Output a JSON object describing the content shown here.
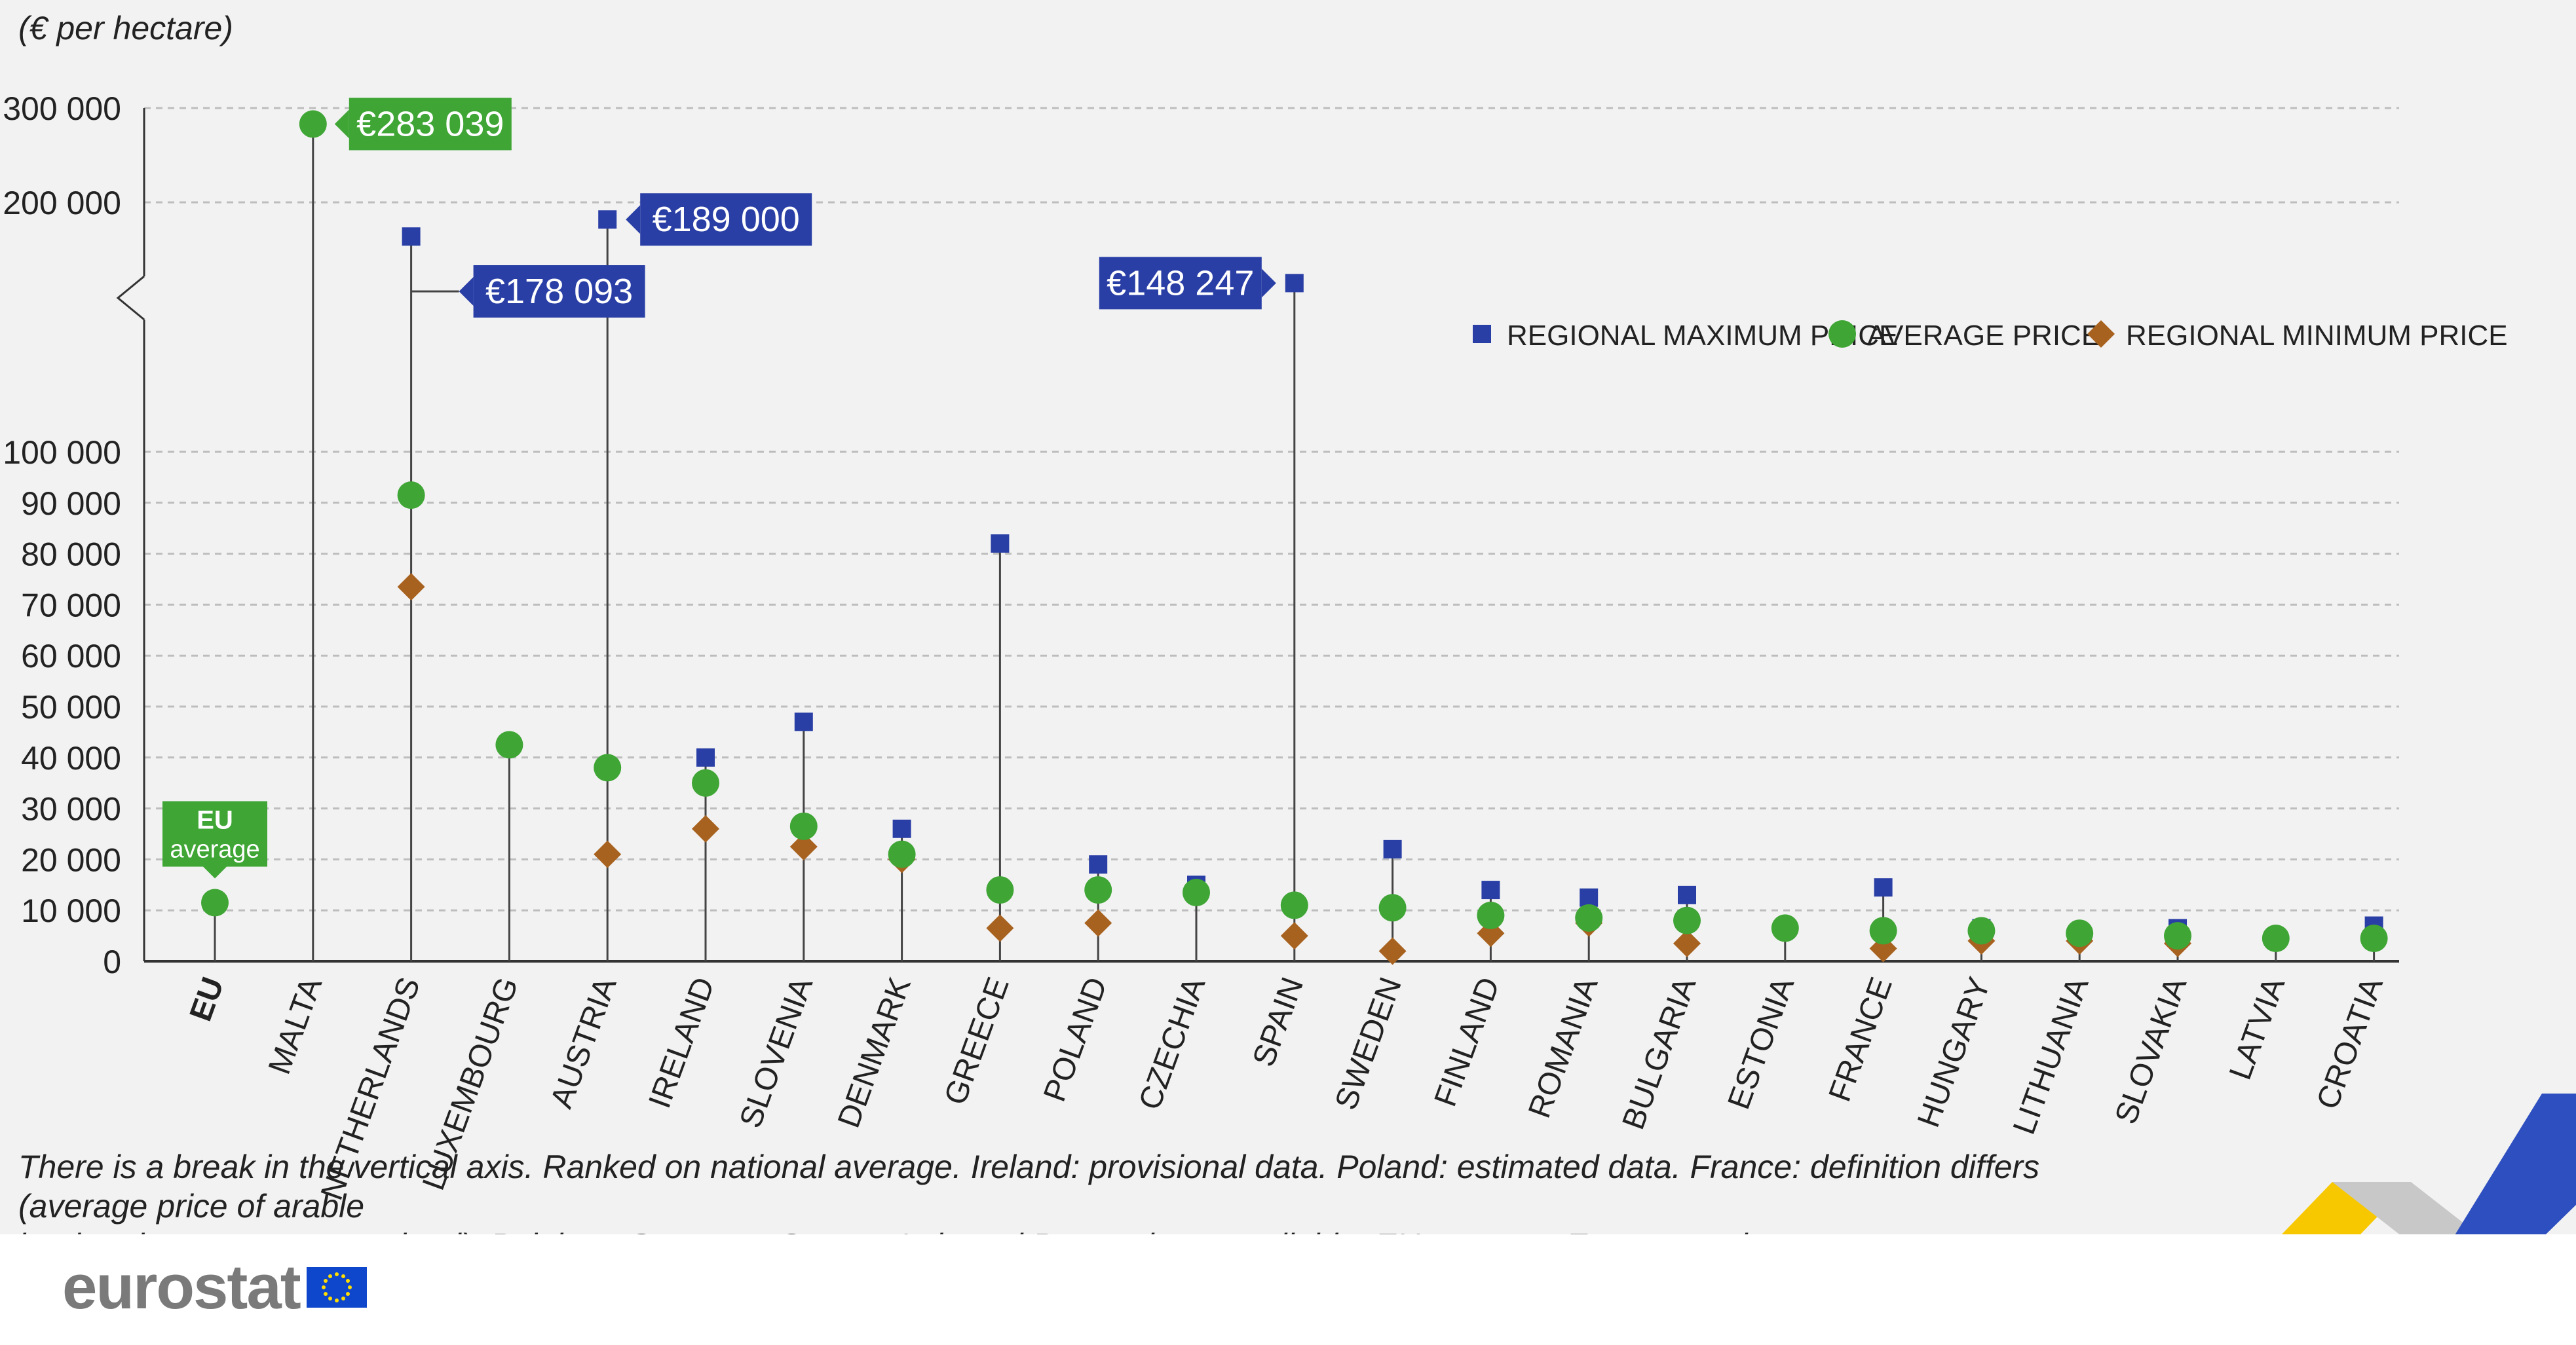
{
  "chart_data": {
    "type": "scatter",
    "unit_label": "(€ per hectare)",
    "categories": [
      "EU",
      "MALTA",
      "NETHERLANDS",
      "LUXEMBOURG",
      "AUSTRIA",
      "IRELAND",
      "SLOVENIA",
      "DENMARK",
      "GREECE",
      "POLAND",
      "CZECHIA",
      "SPAIN",
      "SWEDEN",
      "FINLAND",
      "ROMANIA",
      "BULGARIA",
      "ESTONIA",
      "FRANCE",
      "HUNGARY",
      "LITHUANIA",
      "SLOVAKIA",
      "LATVIA",
      "CROATIA"
    ],
    "series": [
      {
        "name": "REGIONAL MAXIMUM PRICE",
        "marker": "square",
        "color": "#2a3fa6",
        "values": [
          null,
          null,
          178093,
          null,
          189000,
          40000,
          47000,
          26000,
          82000,
          19000,
          15000,
          148247,
          22000,
          14000,
          12500,
          13000,
          null,
          14500,
          6500,
          5500,
          6500,
          null,
          7000
        ]
      },
      {
        "name": "AVERAGE PRICE",
        "marker": "circle",
        "color": "#3fa535",
        "values": [
          11500,
          283039,
          91500,
          42500,
          38000,
          35000,
          26500,
          21000,
          14000,
          14000,
          13500,
          11000,
          10500,
          9000,
          8500,
          8000,
          6500,
          6000,
          6000,
          5500,
          5000,
          4500,
          4500
        ]
      },
      {
        "name": "REGIONAL MINIMUM PRICE",
        "marker": "diamond",
        "color": "#a8621f",
        "values": [
          null,
          null,
          73500,
          null,
          21000,
          26000,
          22500,
          20000,
          6500,
          7500,
          null,
          5000,
          2000,
          5500,
          7500,
          3500,
          null,
          2500,
          4000,
          4000,
          3500,
          null,
          null
        ]
      }
    ],
    "yticks": [
      "0",
      "10 000",
      "20 000",
      "30 000",
      "40 000",
      "50 000",
      "60 000",
      "70 000",
      "80 000",
      "90 000",
      "100 000",
      "200 000",
      "300 000"
    ],
    "ylim": [
      0,
      300000
    ],
    "axis_break": true,
    "grid": true,
    "legend": "top-right",
    "callouts": [
      {
        "category": "MALTA",
        "text": "€283 039",
        "color": "#3fa535"
      },
      {
        "category": "NETHERLANDS",
        "text": "€178 093",
        "color": "#2a3fa6"
      },
      {
        "category": "AUSTRIA",
        "text": "€189 000",
        "color": "#2a3fa6"
      },
      {
        "category": "SPAIN",
        "text": "€148 247",
        "color": "#2a3fa6"
      }
    ],
    "eu_callout": {
      "line1": "EU",
      "line2": "average",
      "color": "#3fa535"
    }
  },
  "footnote": {
    "line1": "There is a break in the vertical axis. Ranked on national average. Ireland: provisional data. Poland: estimated data. France: definition differs (average price of arable",
    "line2": "land and permanent grassland). Belgium, Germany, Cyprus, Italy and Portugal: not available. EU average: Eurostat estimate"
  },
  "logo": {
    "text": "eurostat",
    "icon": "eu-flag-icon"
  },
  "decor": {
    "ribbon_colors": [
      "#f7c800",
      "#c8c8c8",
      "#2e4fbf"
    ]
  }
}
